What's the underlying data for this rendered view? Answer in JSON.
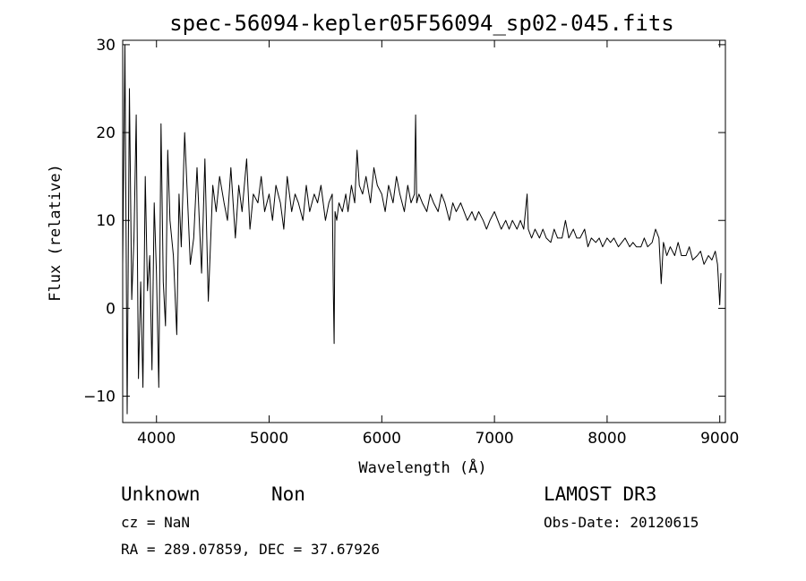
{
  "chart_data": {
    "type": "line",
    "title": "spec-56094-kepler05F56094_sp02-045.fits",
    "xlabel": "Wavelength (Å)",
    "ylabel": "Flux (relative)",
    "xlim": [
      3700,
      9050
    ],
    "ylim": [
      -13,
      30.5
    ],
    "xticks": [
      4000,
      5000,
      6000,
      7000,
      8000,
      9000
    ],
    "yticks": [
      -10,
      0,
      10,
      20,
      30
    ],
    "grid": false,
    "series": [
      {
        "x": [
          3700,
          3720,
          3740,
          3760,
          3780,
          3800,
          3820,
          3840,
          3860,
          3880,
          3900,
          3920,
          3940,
          3960,
          3980,
          4000,
          4020,
          4040,
          4060,
          4080,
          4100,
          4120,
          4150,
          4180,
          4200,
          4220,
          4250,
          4280,
          4300,
          4330,
          4360,
          4400,
          4430,
          4460,
          4500,
          4530,
          4560,
          4600,
          4630,
          4660,
          4700,
          4730,
          4760,
          4800,
          4830,
          4860,
          4900,
          4930,
          4960,
          5000,
          5030,
          5060,
          5100,
          5130,
          5160,
          5200,
          5230,
          5260,
          5300,
          5330,
          5360,
          5400,
          5430,
          5460,
          5500,
          5530,
          5560,
          5570,
          5577,
          5585,
          5600,
          5620,
          5650,
          5680,
          5700,
          5730,
          5760,
          5780,
          5800,
          5830,
          5860,
          5900,
          5930,
          5960,
          6000,
          6030,
          6060,
          6100,
          6130,
          6160,
          6200,
          6230,
          6260,
          6290,
          6300,
          6310,
          6330,
          6360,
          6400,
          6430,
          6460,
          6500,
          6530,
          6560,
          6600,
          6630,
          6660,
          6700,
          6730,
          6760,
          6800,
          6830,
          6860,
          6900,
          6930,
          6960,
          7000,
          7030,
          7060,
          7100,
          7130,
          7160,
          7200,
          7230,
          7260,
          7290,
          7300,
          7330,
          7360,
          7400,
          7430,
          7460,
          7500,
          7530,
          7560,
          7600,
          7630,
          7660,
          7700,
          7730,
          7760,
          7800,
          7830,
          7860,
          7900,
          7930,
          7960,
          8000,
          8030,
          8060,
          8100,
          8130,
          8160,
          8200,
          8230,
          8260,
          8300,
          8330,
          8360,
          8400,
          8430,
          8460,
          8480,
          8500,
          8530,
          8560,
          8600,
          8630,
          8660,
          8700,
          8730,
          8760,
          8800,
          8830,
          8860,
          8900,
          8930,
          8960,
          8980,
          9000,
          9010
        ],
        "y": [
          5,
          30,
          -12,
          25,
          1,
          8,
          22,
          -8,
          3,
          -9,
          15,
          2,
          6,
          -7,
          12,
          4,
          -9,
          21,
          3,
          -2,
          18,
          10,
          6,
          -3,
          13,
          7,
          20,
          11,
          5,
          8,
          16,
          4,
          17,
          0.8,
          14,
          11,
          15,
          12,
          10,
          16,
          8,
          14,
          11,
          17,
          9,
          13,
          12,
          15,
          11,
          13,
          10,
          14,
          12,
          9,
          15,
          11,
          13,
          12,
          10,
          14,
          11,
          13,
          12,
          14,
          10,
          12,
          13,
          2,
          -4,
          11,
          10,
          12,
          11,
          13,
          11,
          14,
          12,
          18,
          14,
          13,
          15,
          12,
          16,
          14,
          13,
          11,
          14,
          12,
          15,
          13,
          11,
          14,
          12,
          13,
          22,
          12,
          13,
          12,
          11,
          13,
          12,
          11,
          13,
          12,
          10,
          12,
          11,
          12,
          11,
          10,
          11,
          10,
          11,
          10,
          9,
          10,
          11,
          10,
          9,
          10,
          9,
          10,
          9,
          10,
          9,
          13,
          9,
          8,
          9,
          8,
          9,
          8,
          7.5,
          9,
          8,
          8,
          10,
          8,
          9,
          8,
          8,
          9,
          7,
          8,
          7.5,
          8,
          7,
          8,
          7.5,
          8,
          7,
          7.5,
          8,
          7,
          7.5,
          7,
          7,
          8,
          7,
          7.5,
          9,
          8,
          2.8,
          7.5,
          6,
          7,
          6,
          7.5,
          6,
          6,
          7,
          5.5,
          6,
          6.5,
          5,
          6,
          5.5,
          6.5,
          5,
          0.4,
          4
        ]
      }
    ]
  },
  "annotations": {
    "class_label": "Unknown",
    "subclass_label": "Non",
    "cz_text": "cz = NaN",
    "coords_text": "RA = 289.07859, DEC =  37.67926",
    "survey_label": "LAMOST DR3",
    "obs_date_text": "Obs-Date: 20120615"
  }
}
